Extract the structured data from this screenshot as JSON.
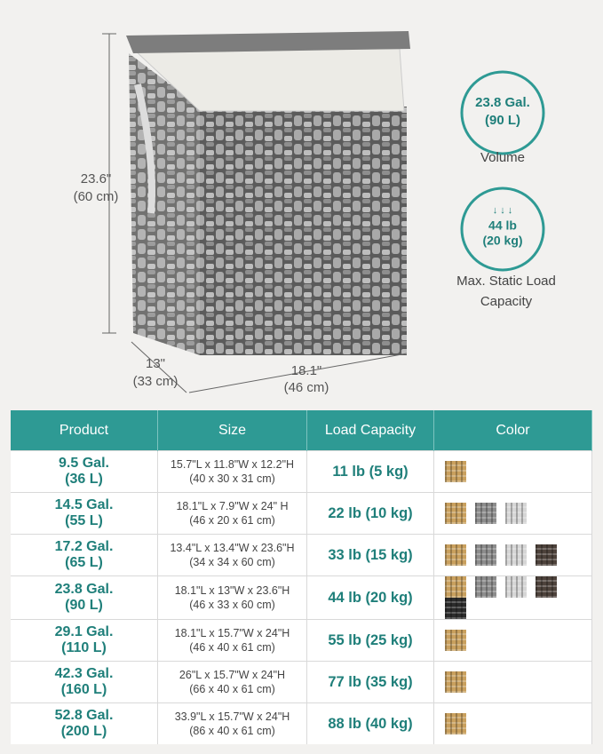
{
  "dimensions": {
    "height": "23.6\"",
    "height_metric": "(60 cm)",
    "depth": "13\"",
    "depth_metric": "(33 cm)",
    "width": "18.1\"",
    "width_metric": "(46 cm)"
  },
  "badges": [
    {
      "lines": [
        "23.8 Gal.",
        "(90 L)"
      ],
      "caption": "Volume"
    },
    {
      "lines": [
        "44 lb",
        "(20 kg)"
      ],
      "caption": "Max. Static Load Capacity"
    }
  ],
  "table": {
    "headers": [
      "Product",
      "Size",
      "Load Capacity",
      "Color"
    ],
    "rows": [
      {
        "gallons": "9.5 Gal.",
        "liters": "(36 L)",
        "size": "15.7\"L x 11.8\"W x 12.2\"H",
        "size_metric": "(40 x 30 x 31 cm)",
        "load": "11 lb (5 kg)"
      },
      {
        "gallons": "14.5 Gal.",
        "liters": "(55 L)",
        "size": "18.1\"L x 7.9\"W x 24\" H",
        "size_metric": "(46 x 20 x 61 cm)",
        "load": "22 lb (10 kg)"
      },
      {
        "gallons": "17.2 Gal.",
        "liters": "(65 L)",
        "size": "13.4\"L x 13.4\"W x 23.6\"H",
        "size_metric": "(34 x 34 x 60 cm)",
        "load": "33 lb (15 kg)"
      },
      {
        "gallons": "23.8 Gal.",
        "liters": "(90 L)",
        "size": "18.1\"L x 13\"W x 23.6\"H",
        "size_metric": "(46 x 33 x 60 cm)",
        "load": "44 lb (20 kg)"
      },
      {
        "gallons": "29.1 Gal.",
        "liters": "(110 L)",
        "size": "18.1\"L x 15.7\"W x 24\"H",
        "size_metric": "(46 x 40 x 61 cm)",
        "load": "55 lb (25 kg)"
      },
      {
        "gallons": "42.3 Gal.",
        "liters": "(160 L)",
        "size": "26\"L x 15.7\"W x 24\"H",
        "size_metric": "(66 x 40 x 61 cm)",
        "load": "77 lb (35 kg)"
      },
      {
        "gallons": "52.8 Gal.",
        "liters": "(200 L)",
        "size": "33.9\"L x 15.7\"W x 24\"H",
        "size_metric": "(86 x 40 x 61 cm)",
        "load": "88 lb (40 kg)"
      }
    ]
  }
}
